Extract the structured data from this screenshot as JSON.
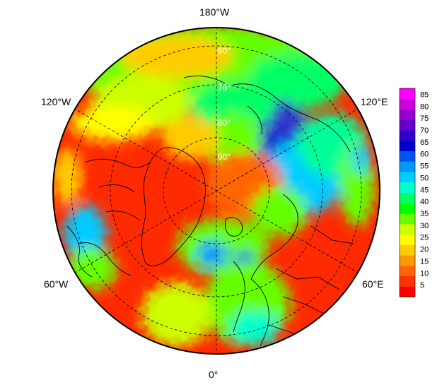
{
  "map": {
    "projection": "north-polar-stereographic",
    "longitude_labels": [
      {
        "id": "lon-180w",
        "text": "180°W"
      },
      {
        "id": "lon-120w",
        "text": "120°W"
      },
      {
        "id": "lon-120e",
        "text": "120°E"
      },
      {
        "id": "lon-60w",
        "text": "60°W"
      },
      {
        "id": "lon-60e",
        "text": "60°E"
      },
      {
        "id": "lon-0",
        "text": "0°"
      }
    ],
    "latitude_labels": [
      "60°",
      "70°",
      "80°",
      "90°"
    ],
    "graticule_style": "dashed",
    "coastlines": true
  },
  "colorbar": {
    "ticks": [
      "85",
      "80",
      "75",
      "70",
      "65",
      "60",
      "55",
      "50",
      "45",
      "40",
      "35",
      "30",
      "25",
      "20",
      "15",
      "10",
      "5"
    ],
    "range": [
      0,
      87.5
    ],
    "colors": [
      "#ff0000",
      "#ff3300",
      "#ff6600",
      "#ff9900",
      "#ffcc00",
      "#ffff00",
      "#ccff00",
      "#66ff00",
      "#00ff00",
      "#00ff66",
      "#00ffcc",
      "#00ccff",
      "#0099ff",
      "#0055ee",
      "#0000cc",
      "#3300cc",
      "#6600cc",
      "#9900cc",
      "#cc00dd",
      "#ff00ff"
    ]
  }
}
